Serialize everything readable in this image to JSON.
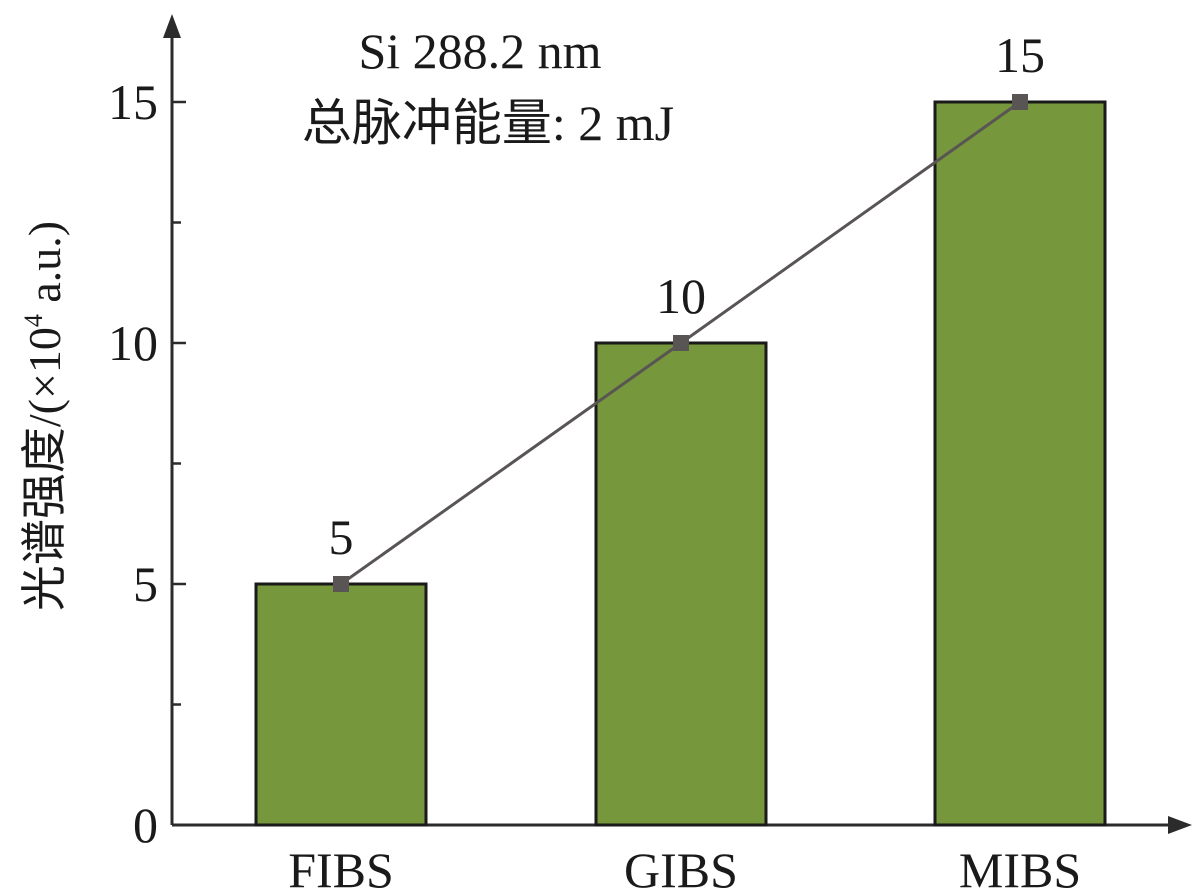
{
  "chart_data": {
    "type": "bar",
    "categories": [
      "FIBS",
      "GIBS",
      "MIBS"
    ],
    "values": [
      5,
      10,
      15
    ],
    "data_labels": [
      "5",
      "10",
      "15"
    ],
    "overlay_line": true,
    "ylim": [
      0,
      17
    ],
    "yticks": [
      0,
      5,
      10,
      15
    ],
    "ytick_labels": [
      "0",
      "5",
      "10",
      "15"
    ],
    "ylabel_prefix": "光谱强度/(×10",
    "ylabel_sup": "4",
    "ylabel_suffix": " a.u.)",
    "xlabel": "",
    "annotation_line1": "Si 288.2 nm",
    "annotation_line2": "总脉冲能量: 2 mJ",
    "grid": false,
    "legend": "none",
    "colors": {
      "bar_fill": "#76973b",
      "bar_stroke": "#1a1a1a",
      "line": "#5a5555",
      "marker": "#5a5555",
      "axis": "#2b2b2b"
    }
  }
}
